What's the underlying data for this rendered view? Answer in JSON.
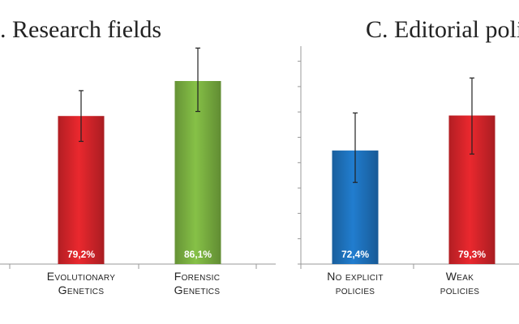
{
  "chart_data": [
    {
      "type": "bar",
      "title": ". Research fields",
      "categories": [
        "Evolutionary Genetics",
        "Forensic Genetics"
      ],
      "values": [
        79.2,
        86.1
      ],
      "value_labels": [
        "79,2%",
        "86,1%"
      ],
      "error": [
        [
          74.2,
          84.2
        ],
        [
          80.1,
          92.6
        ]
      ],
      "colors": [
        "#d9252b",
        "#7cb342"
      ],
      "ylim": [
        50,
        100
      ]
    },
    {
      "type": "bar",
      "title": "C. Editorial poli",
      "categories": [
        "No explicit policies",
        "Weak policies"
      ],
      "values": [
        72.4,
        79.3
      ],
      "value_labels": [
        "72,4%",
        "79,3%"
      ],
      "error": [
        [
          66.1,
          79.8
        ],
        [
          71.7,
          86.7
        ]
      ],
      "colors": [
        "#1f74c0",
        "#d9252b"
      ],
      "ylim": [
        50,
        100
      ],
      "grid": false,
      "yticks": [
        50,
        55,
        60,
        65,
        70,
        75,
        80,
        85,
        90,
        95,
        100
      ]
    }
  ],
  "labels": {
    "b1_line1": "Evolutionary",
    "b1_line2": "Genetics",
    "b2_line1": "Forensic",
    "b2_line2": "Genetics",
    "c1_line1": "No explicit",
    "c1_line2": "policies",
    "c2_line1": "Weak",
    "c2_line2": "policies"
  }
}
